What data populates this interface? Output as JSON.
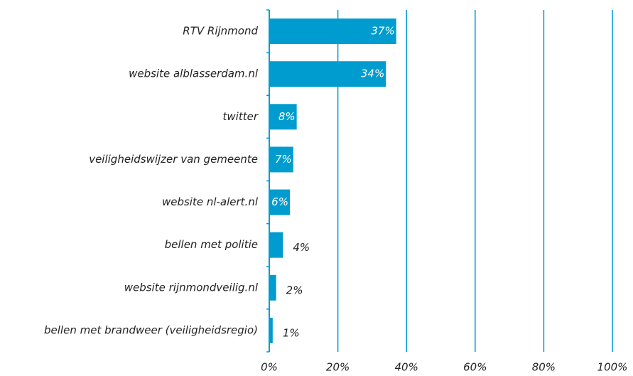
{
  "chart_data": {
    "type": "bar",
    "orientation": "horizontal",
    "categories": [
      "RTV Rijnmond",
      "website alblasserdam.nl",
      "twitter",
      "veiligheidswijzer van gemeente",
      "website nl-alert.nl",
      "bellen met politie",
      "website rijnmondveilig.nl",
      "bellen met brandweer (veiligheidsregio)"
    ],
    "values": [
      37,
      34,
      8,
      7,
      6,
      4,
      2,
      1
    ],
    "value_labels": [
      "37%",
      "34%",
      "8%",
      "7%",
      "6%",
      "4%",
      "2%",
      "1%"
    ],
    "color": "#009ccf",
    "xlim": [
      0,
      100
    ],
    "xticks": [
      {
        "value": 0,
        "label": "0%"
      },
      {
        "value": 20,
        "label": "20%"
      },
      {
        "value": 40,
        "label": "40%"
      },
      {
        "value": 60,
        "label": "60%"
      },
      {
        "value": 80,
        "label": "80%"
      },
      {
        "value": 100,
        "label": "100%"
      }
    ],
    "grid": true
  }
}
